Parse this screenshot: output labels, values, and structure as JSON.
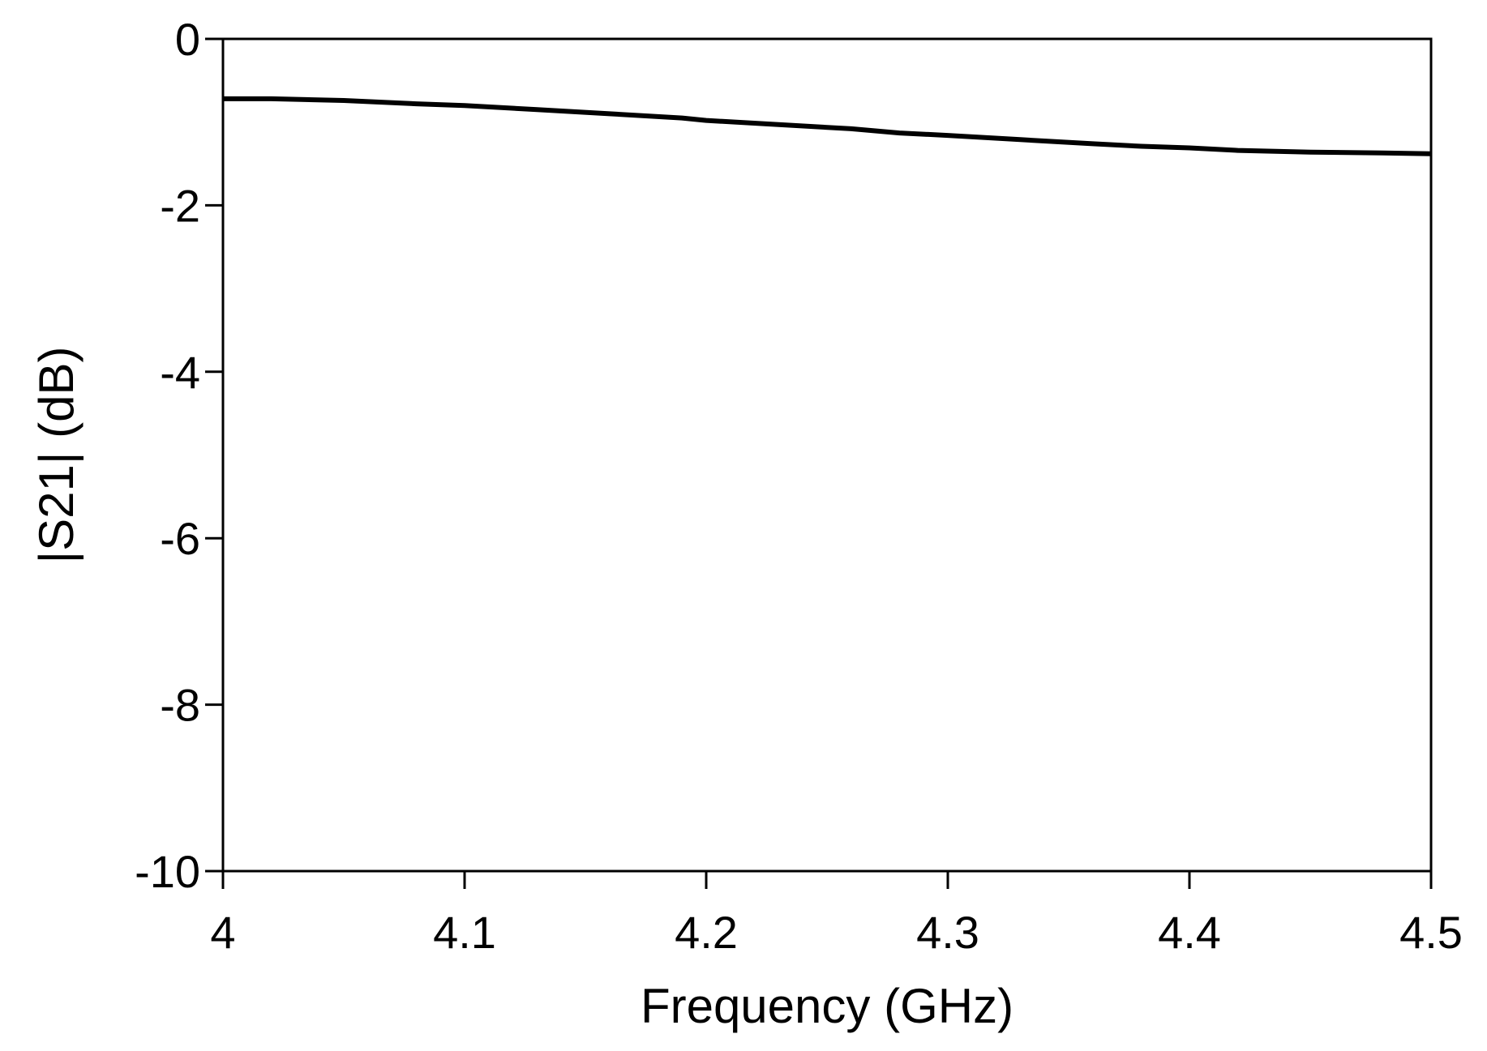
{
  "chart_data": {
    "type": "line",
    "title": "",
    "xlabel": "Frequency (GHz)",
    "ylabel": "|S21|  (dB)",
    "xlim": [
      4,
      4.5
    ],
    "ylim": [
      -10,
      0
    ],
    "x_ticks": [
      4,
      4.1,
      4.2,
      4.3,
      4.4,
      4.5
    ],
    "x_tick_labels": [
      "4",
      "4.1",
      "4.2",
      "4.3",
      "4.4",
      "4.5"
    ],
    "y_ticks": [
      0,
      -2,
      -4,
      -6,
      -8,
      -10
    ],
    "y_tick_labels": [
      "0",
      "-2",
      "-4",
      "-6",
      "-8",
      "-10"
    ],
    "grid": false,
    "legend": "none",
    "series": [
      {
        "color": "#000000",
        "x": [
          4.0,
          4.02,
          4.05,
          4.08,
          4.1,
          4.13,
          4.16,
          4.19,
          4.2,
          4.23,
          4.26,
          4.28,
          4.3,
          4.33,
          4.36,
          4.38,
          4.4,
          4.42,
          4.45,
          4.48,
          4.5
        ],
        "y": [
          -0.72,
          -0.72,
          -0.74,
          -0.78,
          -0.8,
          -0.85,
          -0.9,
          -0.95,
          -0.98,
          -1.03,
          -1.08,
          -1.13,
          -1.16,
          -1.21,
          -1.26,
          -1.29,
          -1.31,
          -1.34,
          -1.36,
          -1.37,
          -1.38
        ]
      }
    ]
  }
}
